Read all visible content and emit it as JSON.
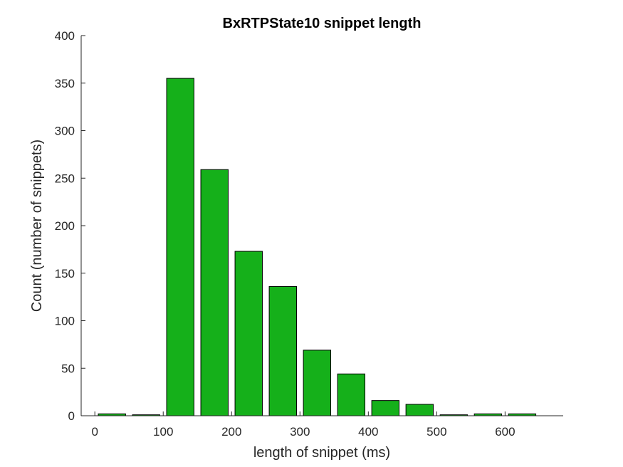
{
  "chart_data": {
    "type": "bar",
    "title": "BxRTPState10 snippet length",
    "xlabel": "length of snippet (ms)",
    "ylabel": "Count (number of snippets)",
    "xlim": [
      -20,
      685
    ],
    "ylim": [
      0,
      400
    ],
    "bin_width": 50,
    "bar_fraction": 0.8,
    "xticks": [
      0,
      100,
      200,
      300,
      400,
      500,
      600
    ],
    "yticks": [
      0,
      50,
      100,
      150,
      200,
      250,
      300,
      350,
      400
    ],
    "bin_centers": [
      25,
      75,
      125,
      175,
      225,
      275,
      325,
      375,
      425,
      475,
      525,
      575,
      625
    ],
    "values": [
      2,
      1,
      355,
      259,
      173,
      136,
      69,
      44,
      16,
      12,
      1,
      2,
      2
    ],
    "grid": false,
    "bar_color": "#15b01a",
    "edge_color": "#000000"
  }
}
